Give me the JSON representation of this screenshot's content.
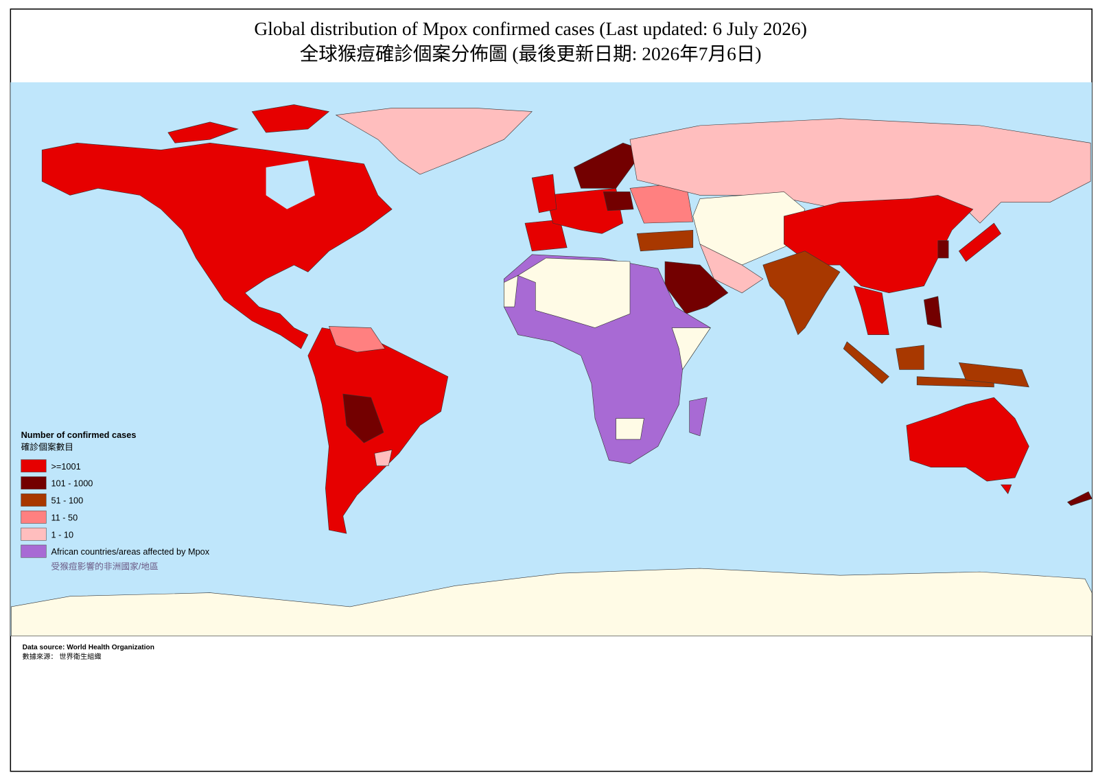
{
  "header": {
    "title": "Global distribution of Mpox confirmed cases (Last updated: 6 July 2026)",
    "subtitle": "全球猴痘確診個案分佈圖 (最後更新日期: 2026年7月6日)"
  },
  "legend": {
    "title": "Number of confirmed cases",
    "title_zh": "確診個案數目",
    "items": [
      {
        "label": ">=1001",
        "color": "#e60000"
      },
      {
        "label": "101 - 1000",
        "color": "#730000"
      },
      {
        "label": "51 - 100",
        "color": "#a83800"
      },
      {
        "label": "11 - 50",
        "color": "#ff8080"
      },
      {
        "label": "1 - 10",
        "color": "#ffbebe"
      },
      {
        "label": "African countries/areas affected by Mpox",
        "label_zh": "受猴痘影響的非洲國家/地區",
        "color": "#a86ad4"
      }
    ]
  },
  "footer": {
    "source": "Data source: World Health Organization",
    "source_zh": "數據來源： 世界衛生組織"
  }
}
